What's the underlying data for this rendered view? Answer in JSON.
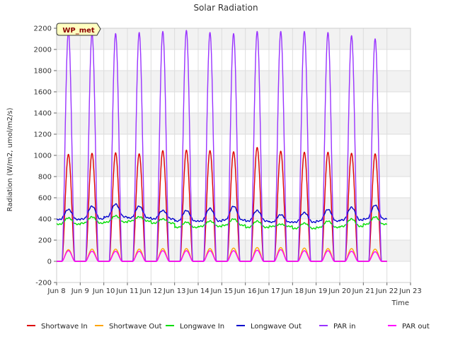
{
  "chart_data": {
    "type": "line",
    "title": "Solar Radiation",
    "xlabel": "Time",
    "ylabel": "Radiation (W/m2, umol/m2/s)",
    "site_label": "WP_met",
    "ylim": [
      -200,
      2200
    ],
    "yticks": [
      -200,
      0,
      200,
      400,
      600,
      800,
      1000,
      1200,
      1400,
      1600,
      1800,
      2000,
      2200
    ],
    "xlim": [
      8,
      23
    ],
    "xticks": [
      8,
      9,
      10,
      11,
      12,
      13,
      14,
      15,
      16,
      17,
      18,
      19,
      20,
      21,
      22,
      23
    ],
    "xtick_labels": [
      "Jun 8",
      "Jun 9",
      "Jun 10",
      "Jun 11",
      "Jun 12",
      "Jun 13",
      "Jun 14",
      "Jun 15",
      "Jun 16",
      "Jun 17",
      "Jun 18",
      "Jun 19",
      "Jun 20",
      "Jun 21",
      "Jun 22",
      "Jun 23"
    ],
    "grid": true,
    "legend_position": "bottom",
    "days": [
      8.5,
      9.5,
      10.5,
      11.5,
      12.5,
      13.5,
      14.5,
      15.5,
      16.5,
      17.5,
      18.5,
      19.5,
      20.5,
      21.5
    ],
    "series": [
      {
        "name": "Shortwave In",
        "color": "#dd0000",
        "kind": "diurnal",
        "night": 0,
        "peaks": [
          1010,
          1020,
          1025,
          1015,
          1045,
          1050,
          1045,
          1035,
          1075,
          1040,
          1030,
          1030,
          1020,
          1015
        ]
      },
      {
        "name": "Shortwave Out",
        "color": "#ffa500",
        "kind": "diurnal",
        "night": 0,
        "peaks": [
          110,
          115,
          115,
          115,
          120,
          120,
          120,
          125,
          130,
          130,
          125,
          120,
          120,
          115
        ]
      },
      {
        "name": "Longwave In",
        "color": "#00dd00",
        "kind": "continuous",
        "night": [
          350,
          360,
          370,
          380,
          360,
          320,
          330,
          340,
          320,
          330,
          310,
          320,
          330,
          350
        ],
        "peaks": [
          410,
          420,
          430,
          420,
          400,
          370,
          380,
          400,
          380,
          350,
          360,
          380,
          400,
          420
        ]
      },
      {
        "name": "Longwave Out",
        "color": "#0000cc",
        "kind": "continuous",
        "night": [
          395,
          400,
          420,
          410,
          400,
          380,
          380,
          390,
          380,
          370,
          370,
          380,
          390,
          400
        ],
        "peaks": [
          490,
          520,
          540,
          520,
          480,
          480,
          500,
          520,
          480,
          440,
          460,
          490,
          510,
          530
        ]
      },
      {
        "name": "PAR in",
        "color": "#9933ff",
        "kind": "diurnal",
        "night": 0,
        "peaks": [
          2170,
          2150,
          2150,
          2160,
          2170,
          2180,
          2160,
          2150,
          2170,
          2170,
          2170,
          2160,
          2130,
          2100
        ]
      },
      {
        "name": "PAR out",
        "color": "#ff00ff",
        "kind": "diurnal",
        "night": 0,
        "peaks": [
          100,
          95,
          95,
          95,
          100,
          100,
          100,
          100,
          105,
          110,
          100,
          100,
          95,
          90
        ]
      }
    ]
  }
}
